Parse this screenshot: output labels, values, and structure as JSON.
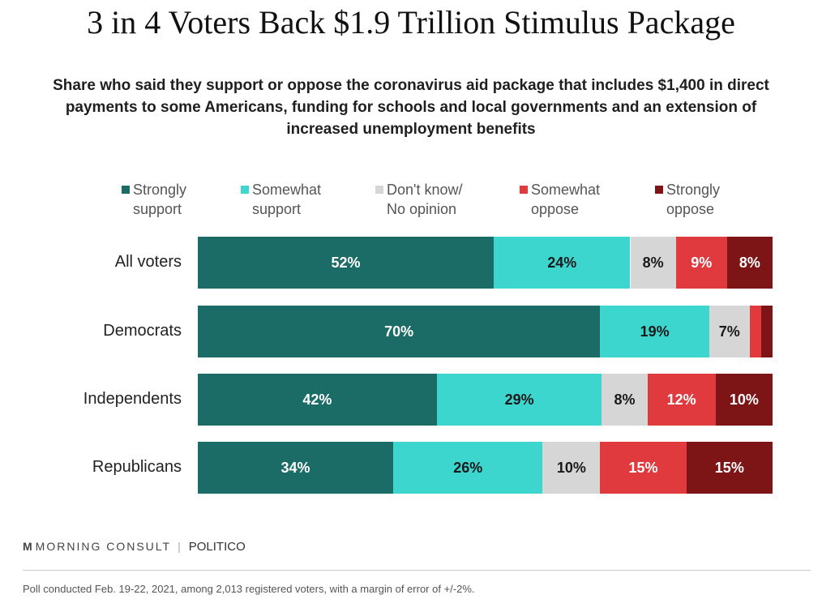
{
  "header": {
    "title": "3 in 4 Voters Back $1.9 Trillion Stimulus Package",
    "subtitle": "Share who said they support or oppose the coronavirus aid package that includes $1,400 in direct payments to some Americans, funding for schools and local governments and an extension of increased unemployment benefits"
  },
  "colors": {
    "strongly_support": "#1b6b66",
    "somewhat_support": "#3dd6ce",
    "dont_know": "#d6d6d6",
    "somewhat_oppose": "#e0393e",
    "strongly_oppose": "#7d1416"
  },
  "chart_data": {
    "type": "bar",
    "orientation": "horizontal",
    "stacked": true,
    "categories": [
      "All voters",
      "Democrats",
      "Independents",
      "Republicans"
    ],
    "series": [
      {
        "name": "Strongly\nsupport",
        "color": "#1b6b66",
        "values": [
          52,
          70,
          42,
          34
        ],
        "labels": [
          "52%",
          "70%",
          "42%",
          "34%"
        ]
      },
      {
        "name": "Somewhat\nsupport",
        "color": "#3dd6ce",
        "values": [
          24,
          19,
          29,
          26
        ],
        "labels": [
          "24%",
          "19%",
          "29%",
          "26%"
        ]
      },
      {
        "name": "Don't know/\nNo opinion",
        "color": "#d6d6d6",
        "values": [
          8,
          7,
          8,
          10
        ],
        "labels": [
          "8%",
          "7%",
          "8%",
          "10%"
        ]
      },
      {
        "name": "Somewhat\noppose",
        "color": "#e0393e",
        "values": [
          9,
          2,
          12,
          15
        ],
        "labels": [
          "9%",
          "",
          "12%",
          "15%"
        ]
      },
      {
        "name": "Strongly\noppose",
        "color": "#7d1416",
        "values": [
          8,
          2,
          10,
          15
        ],
        "labels": [
          "8%",
          "",
          "10%",
          "15%"
        ]
      }
    ],
    "xlim": [
      0,
      100
    ],
    "legend_position": "top"
  },
  "footer": {
    "logo_text": "MORNING CONSULT",
    "logo_mark": "M",
    "partner": "POLITICO",
    "note": "Poll conducted Feb. 19-22, 2021, among 2,013 registered voters, with a margin of error of +/-2%."
  }
}
